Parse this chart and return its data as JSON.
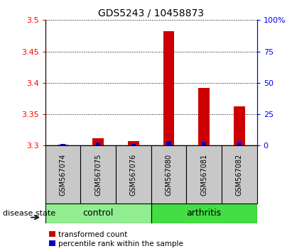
{
  "title": "GDS5243 / 10458873",
  "samples": [
    "GSM567074",
    "GSM567075",
    "GSM567076",
    "GSM567080",
    "GSM567081",
    "GSM567082"
  ],
  "transformed_count": [
    3.302,
    3.312,
    3.307,
    3.482,
    3.392,
    3.362
  ],
  "percentile_rank": [
    1.5,
    2.5,
    1.5,
    3.5,
    3.0,
    3.0
  ],
  "ylim_left": [
    3.3,
    3.5
  ],
  "ylim_right": [
    0,
    100
  ],
  "yticks_left": [
    3.3,
    3.35,
    3.4,
    3.45,
    3.5
  ],
  "yticks_right": [
    0,
    25,
    50,
    75,
    100
  ],
  "bar_color_red": "#CC0000",
  "bar_color_blue": "#0000CC",
  "sample_box_color": "#C8C8C8",
  "ctrl_color": "#90EE90",
  "arth_color": "#44DD44",
  "legend_red_label": "transformed count",
  "legend_blue_label": "percentile rank within the sample",
  "disease_state_label": "disease state"
}
